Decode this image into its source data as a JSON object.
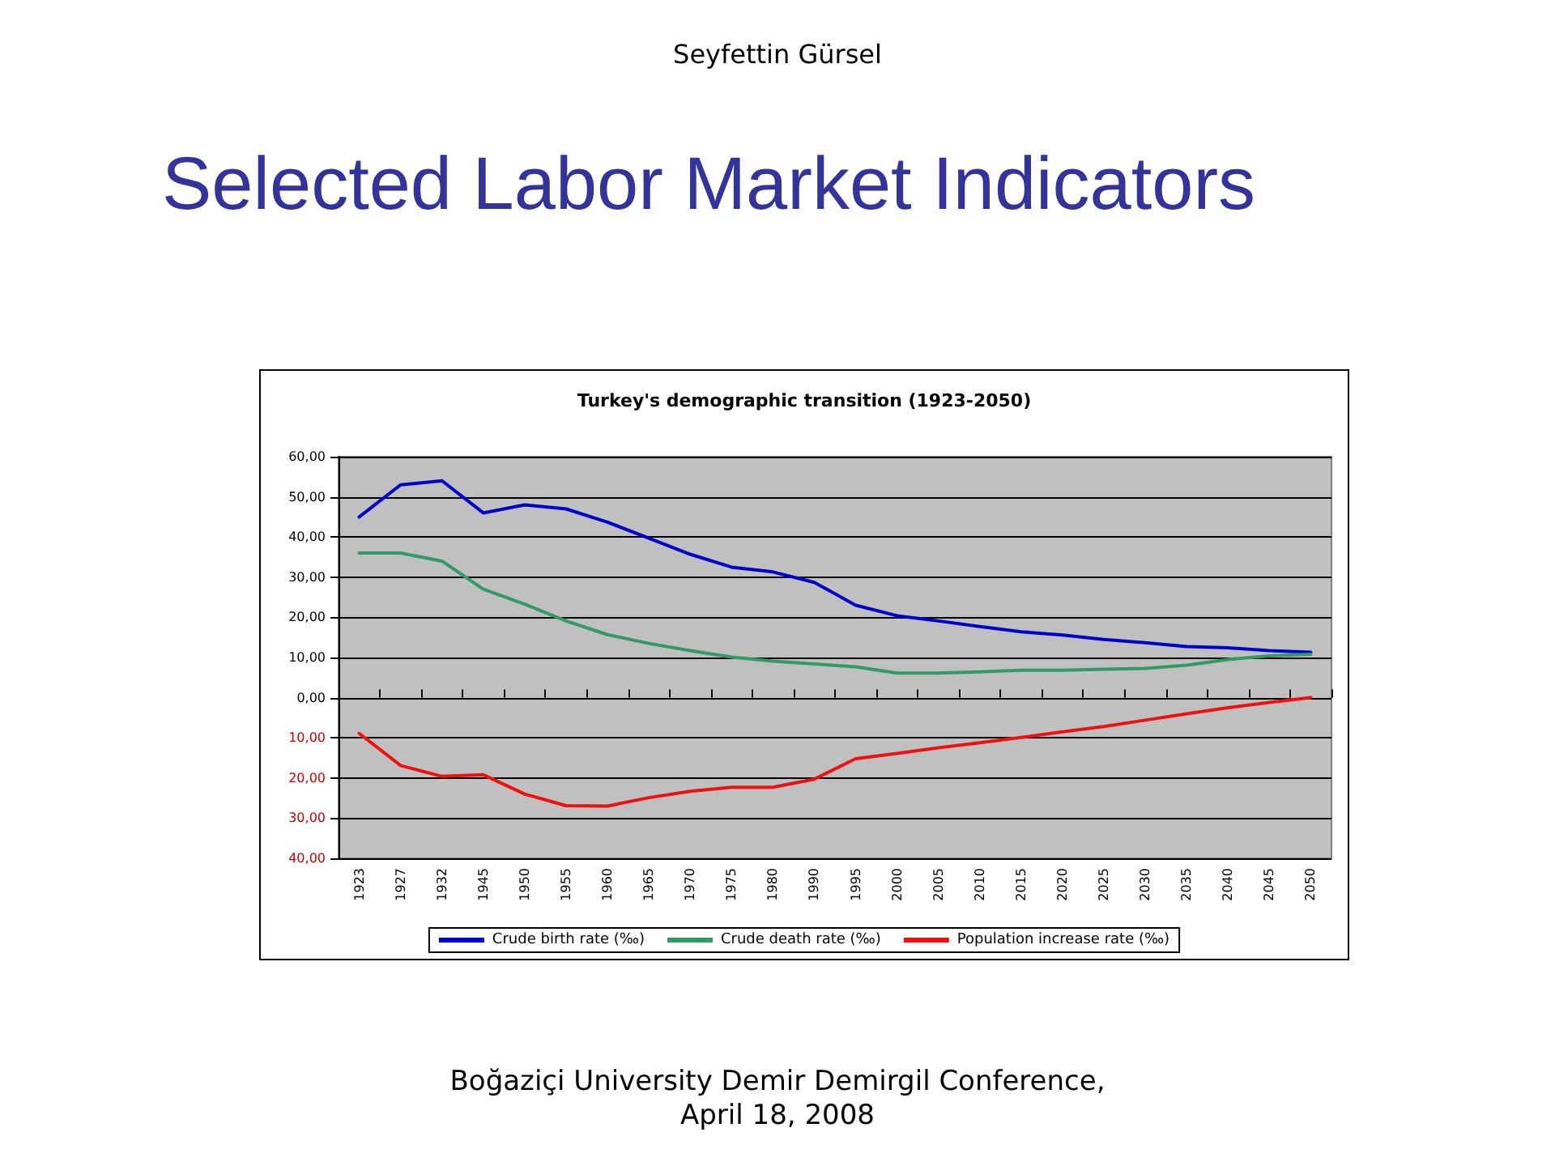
{
  "chart_data": {
    "type": "line",
    "title": "Turkey's demographic transition (1923-2050)",
    "annotations": [
      "Seyfettin Gürsel",
      "Selected Labor Market Indicators",
      "Boğaziçi University Demir Demirgil Conference,\nApril 18, 2008"
    ],
    "categories": [
      "1923",
      "1927",
      "1932",
      "1945",
      "1950",
      "1955",
      "1960",
      "1965",
      "1970",
      "1975",
      "1980",
      "1990",
      "1995",
      "2000",
      "2005",
      "2010",
      "2015",
      "2020",
      "2025",
      "2030",
      "2035",
      "2040",
      "2045",
      "2050"
    ],
    "series": [
      {
        "name": "Crude birth rate (‰)",
        "color": "#0000cc",
        "values": [
          45,
          53,
          54,
          46,
          48,
          47,
          43.7,
          39.7,
          35.7,
          32.5,
          31.3,
          28.7,
          23,
          20.4,
          19.1,
          17.7,
          16.4,
          15.6,
          14.5,
          13.7,
          12.7,
          12.4,
          11.7,
          11.3
        ]
      },
      {
        "name": "Crude death rate (‰)",
        "color": "#339966",
        "values": [
          36,
          36,
          34,
          27,
          23.3,
          19.1,
          15.7,
          13.5,
          11.7,
          10.1,
          9.1,
          8.4,
          7.7,
          6.1,
          6.1,
          6.4,
          6.8,
          6.8,
          7.1,
          7.3,
          8.1,
          9.5,
          10.4,
          10.8
        ]
      },
      {
        "name": "Population increase rate (‰)",
        "color": "#ee1111",
        "values": [
          -8.9,
          -16.9,
          -19.6,
          -19.2,
          -24,
          -26.9,
          -27,
          -24.9,
          -23.3,
          -22.3,
          -22.3,
          -20.3,
          -15.2,
          -13.9,
          -12.5,
          -11.2,
          -9.9,
          -8.5,
          -7.2,
          -5.6,
          -4,
          -2.5,
          -1.2,
          0
        ]
      }
    ],
    "ylim": [
      -40,
      60
    ],
    "yticks": [
      {
        "value": -40,
        "label": "40,00"
      },
      {
        "value": -30,
        "label": "30,00"
      },
      {
        "value": -20,
        "label": "20,00"
      },
      {
        "value": -10,
        "label": "10,00"
      },
      {
        "value": 0,
        "label": "0,00"
      },
      {
        "value": 10,
        "label": "10,00"
      },
      {
        "value": 20,
        "label": "20,00"
      },
      {
        "value": 30,
        "label": "30,00"
      },
      {
        "value": 40,
        "label": "40,00"
      },
      {
        "value": 50,
        "label": "50,00"
      },
      {
        "value": 60,
        "label": "60,00"
      }
    ],
    "grid": "y",
    "legend": "bottom",
    "marker": "none",
    "line_style": "solid"
  }
}
